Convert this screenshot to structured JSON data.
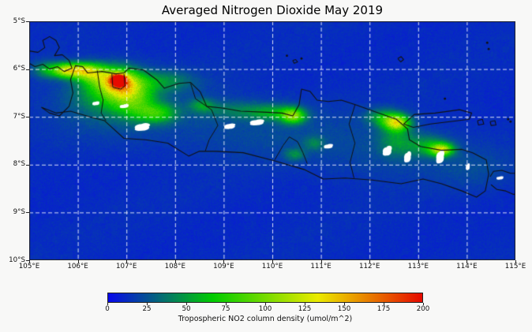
{
  "figure": {
    "title": "Averaged Nitrogen Dioxide May 2019",
    "background": "#f8f8f7"
  },
  "chart_data": {
    "type": "heatmap",
    "title": "Averaged Nitrogen Dioxide May 2019",
    "x_axis": {
      "range": [
        105,
        115
      ],
      "tick_labels": [
        "105°E",
        "106°E",
        "107°E",
        "108°E",
        "109°E",
        "110°E",
        "111°E",
        "112°E",
        "113°E",
        "114°E",
        "115°E"
      ]
    },
    "y_axis": {
      "range": [
        5,
        10
      ],
      "tick_labels": [
        "5°S",
        "6°S",
        "7°S",
        "8°S",
        "9°S",
        "10°S"
      ]
    },
    "grid": {
      "on": true,
      "color": "#ffffff",
      "style": "dashed"
    },
    "colorbar": {
      "label": "Tropospheric NO2 column density (umol/m^2)",
      "range": [
        0,
        200
      ],
      "tick_labels": [
        "0",
        "25",
        "50",
        "75",
        "100",
        "125",
        "150",
        "175",
        "200"
      ],
      "stops": [
        [
          0,
          [
            8,
            8,
            235
          ]
        ],
        [
          0.333,
          [
            0,
            204,
            0
          ]
        ],
        [
          0.667,
          [
            235,
            235,
            0
          ]
        ],
        [
          1,
          [
            230,
            10,
            0
          ]
        ]
      ]
    },
    "raster": {
      "base_value": 12,
      "noise": 6,
      "hotspots": [
        [
          105.72,
          6.02,
          0.18,
          0.1,
          55
        ],
        [
          106.05,
          6.02,
          0.3,
          0.11,
          95
        ],
        [
          105.35,
          6.0,
          0.2,
          0.12,
          35
        ],
        [
          106.35,
          6.15,
          0.25,
          0.15,
          45
        ],
        [
          106.83,
          6.22,
          0.1,
          0.075,
          185
        ],
        [
          106.87,
          6.28,
          0.28,
          0.2,
          100
        ],
        [
          106.6,
          6.45,
          0.45,
          0.3,
          40
        ],
        [
          107.15,
          6.65,
          0.3,
          0.25,
          50
        ],
        [
          107.62,
          6.92,
          0.28,
          0.14,
          50
        ],
        [
          107.7,
          6.25,
          0.45,
          0.15,
          30
        ],
        [
          108.55,
          6.75,
          0.18,
          0.1,
          30
        ],
        [
          109.2,
          6.85,
          0.45,
          0.13,
          20
        ],
        [
          110.42,
          6.97,
          0.17,
          0.11,
          80
        ],
        [
          110.0,
          6.9,
          0.35,
          0.12,
          35
        ],
        [
          110.45,
          7.78,
          0.14,
          0.09,
          28
        ],
        [
          110.85,
          7.55,
          0.15,
          0.1,
          22
        ],
        [
          112.55,
          7.12,
          0.18,
          0.11,
          95
        ],
        [
          112.3,
          7.0,
          0.25,
          0.12,
          40
        ],
        [
          112.55,
          7.45,
          0.25,
          0.25,
          30
        ],
        [
          113.48,
          7.68,
          0.16,
          0.09,
          95
        ],
        [
          113.2,
          7.6,
          0.3,
          0.15,
          35
        ],
        [
          106.8,
          6.7,
          1.1,
          0.5,
          14
        ],
        [
          109.5,
          7.2,
          1.3,
          0.45,
          10
        ],
        [
          112.3,
          7.7,
          1.2,
          0.45,
          10
        ],
        [
          114.2,
          8.1,
          0.6,
          0.3,
          8
        ]
      ],
      "clouds": [
        [
          106.37,
          6.72,
          0.07,
          0.035
        ],
        [
          106.95,
          6.78,
          0.09,
          0.035
        ],
        [
          107.32,
          7.22,
          0.15,
          0.07
        ],
        [
          109.12,
          7.2,
          0.11,
          0.05
        ],
        [
          109.68,
          7.12,
          0.14,
          0.055
        ],
        [
          111.15,
          7.62,
          0.09,
          0.04
        ],
        [
          112.36,
          7.72,
          0.09,
          0.09
        ],
        [
          112.78,
          7.85,
          0.07,
          0.1
        ],
        [
          113.45,
          7.85,
          0.08,
          0.12
        ],
        [
          114.02,
          8.05,
          0.04,
          0.06
        ],
        [
          114.68,
          8.28,
          0.07,
          0.03
        ]
      ]
    },
    "geo": {
      "coast_color": "#111111",
      "coastlines": [
        [
          [
            105.25,
            6.8
          ],
          [
            105.42,
            6.92
          ],
          [
            105.62,
            6.98
          ],
          [
            105.82,
            6.78
          ],
          [
            105.9,
            6.5
          ],
          [
            105.85,
            6.22
          ],
          [
            105.95,
            5.93
          ],
          [
            106.1,
            5.95
          ],
          [
            106.2,
            6.08
          ],
          [
            106.5,
            6.05
          ],
          [
            106.78,
            6.1
          ],
          [
            106.95,
            6.08
          ],
          [
            107.05,
            5.98
          ],
          [
            107.35,
            6.02
          ],
          [
            107.62,
            6.22
          ],
          [
            107.78,
            6.4
          ],
          [
            108.08,
            6.3
          ],
          [
            108.32,
            6.28
          ],
          [
            108.52,
            6.48
          ],
          [
            108.65,
            6.78
          ],
          [
            109.0,
            6.82
          ],
          [
            109.35,
            6.88
          ],
          [
            109.8,
            6.9
          ],
          [
            110.2,
            6.92
          ],
          [
            110.42,
            6.98
          ],
          [
            110.55,
            6.75
          ],
          [
            110.6,
            6.42
          ],
          [
            110.78,
            6.47
          ],
          [
            110.92,
            6.65
          ],
          [
            111.15,
            6.68
          ],
          [
            111.42,
            6.65
          ],
          [
            111.72,
            6.75
          ],
          [
            112.08,
            6.88
          ],
          [
            112.55,
            7.05
          ],
          [
            112.78,
            7.25
          ],
          [
            112.82,
            7.48
          ],
          [
            113.05,
            7.62
          ],
          [
            113.48,
            7.7
          ],
          [
            113.9,
            7.68
          ],
          [
            114.12,
            7.75
          ],
          [
            114.4,
            7.9
          ],
          [
            114.45,
            8.2
          ],
          [
            114.38,
            8.55
          ],
          [
            114.2,
            8.68
          ],
          [
            113.9,
            8.55
          ],
          [
            113.48,
            8.4
          ],
          [
            113.1,
            8.3
          ],
          [
            112.65,
            8.4
          ],
          [
            112.05,
            8.32
          ],
          [
            111.5,
            8.28
          ],
          [
            111.05,
            8.3
          ],
          [
            110.65,
            8.1
          ],
          [
            110.05,
            7.92
          ],
          [
            109.4,
            7.75
          ],
          [
            108.85,
            7.72
          ],
          [
            108.5,
            7.72
          ],
          [
            108.28,
            7.82
          ],
          [
            107.85,
            7.55
          ],
          [
            107.4,
            7.48
          ],
          [
            106.95,
            7.45
          ],
          [
            106.55,
            7.08
          ],
          [
            106.25,
            7.0
          ],
          [
            105.85,
            6.88
          ],
          [
            105.55,
            6.92
          ],
          [
            105.25,
            6.8
          ]
        ],
        [
          [
            112.7,
            7.15
          ],
          [
            112.92,
            6.95
          ],
          [
            113.35,
            6.92
          ],
          [
            113.85,
            6.85
          ],
          [
            114.1,
            6.92
          ],
          [
            114.05,
            7.05
          ],
          [
            113.65,
            7.1
          ],
          [
            113.25,
            7.15
          ],
          [
            112.9,
            7.22
          ],
          [
            112.7,
            7.15
          ]
        ],
        [
          [
            105.0,
            5.62
          ],
          [
            105.18,
            5.65
          ],
          [
            105.32,
            5.55
          ],
          [
            105.28,
            5.4
          ],
          [
            105.42,
            5.32
          ],
          [
            105.55,
            5.4
          ],
          [
            105.62,
            5.55
          ],
          [
            105.52,
            5.72
          ],
          [
            105.68,
            5.7
          ],
          [
            105.82,
            5.82
          ],
          [
            105.88,
            5.98
          ],
          [
            105.72,
            6.05
          ],
          [
            105.58,
            5.95
          ],
          [
            105.42,
            6.0
          ],
          [
            105.28,
            5.9
          ],
          [
            105.12,
            5.95
          ],
          [
            105.0,
            5.88
          ]
        ],
        [
          [
            114.48,
            8.25
          ],
          [
            114.55,
            8.14
          ],
          [
            114.72,
            8.12
          ],
          [
            114.9,
            8.18
          ],
          [
            115.0,
            8.18
          ]
        ],
        [
          [
            114.5,
            8.42
          ],
          [
            114.62,
            8.52
          ],
          [
            114.8,
            8.55
          ],
          [
            114.95,
            8.62
          ],
          [
            115.0,
            8.62
          ]
        ],
        [
          [
            110.42,
            5.82
          ],
          [
            110.48,
            5.8
          ],
          [
            110.52,
            5.85
          ],
          [
            110.45,
            5.88
          ],
          [
            110.42,
            5.82
          ]
        ],
        [
          [
            112.58,
            5.78
          ],
          [
            112.65,
            5.74
          ],
          [
            112.7,
            5.8
          ],
          [
            112.64,
            5.85
          ],
          [
            112.58,
            5.78
          ]
        ],
        [
          [
            114.22,
            7.08
          ],
          [
            114.32,
            7.05
          ],
          [
            114.35,
            7.15
          ],
          [
            114.24,
            7.17
          ],
          [
            114.22,
            7.08
          ]
        ],
        [
          [
            114.48,
            7.1
          ],
          [
            114.58,
            7.08
          ],
          [
            114.6,
            7.17
          ],
          [
            114.5,
            7.18
          ],
          [
            114.48,
            7.1
          ]
        ]
      ],
      "borders": [
        [
          [
            106.4,
            6.03
          ],
          [
            106.45,
            6.38
          ],
          [
            106.52,
            6.65
          ],
          [
            106.48,
            6.92
          ],
          [
            106.58,
            7.08
          ]
        ],
        [
          [
            106.7,
            6.1
          ],
          [
            106.72,
            6.38
          ],
          [
            106.88,
            6.42
          ],
          [
            106.97,
            6.35
          ],
          [
            106.95,
            6.1
          ]
        ],
        [
          [
            108.32,
            6.3
          ],
          [
            108.42,
            6.62
          ],
          [
            108.75,
            6.85
          ],
          [
            108.88,
            7.18
          ],
          [
            108.7,
            7.48
          ],
          [
            108.62,
            7.72
          ]
        ],
        [
          [
            111.7,
            6.75
          ],
          [
            111.58,
            7.15
          ],
          [
            111.7,
            7.55
          ],
          [
            111.6,
            7.95
          ],
          [
            111.68,
            8.28
          ]
        ],
        [
          [
            110.05,
            7.9
          ],
          [
            110.22,
            7.6
          ],
          [
            110.35,
            7.42
          ],
          [
            110.52,
            7.52
          ],
          [
            110.63,
            7.75
          ],
          [
            110.72,
            7.98
          ]
        ]
      ],
      "island_dots": [
        [
          110.3,
          5.72
        ],
        [
          110.6,
          5.78
        ],
        [
          114.42,
          5.45
        ],
        [
          114.45,
          5.58
        ],
        [
          114.85,
          7.05
        ],
        [
          113.55,
          6.62
        ],
        [
          114.9,
          7.1
        ]
      ]
    }
  }
}
